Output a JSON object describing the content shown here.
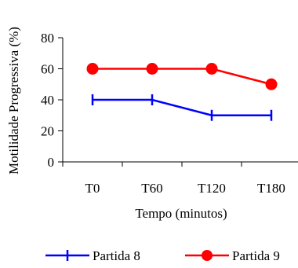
{
  "chart_data": {
    "type": "line",
    "categories": [
      "T0",
      "T60",
      "T120",
      "T180"
    ],
    "series": [
      {
        "name": "Partida 8",
        "values": [
          40,
          40,
          30,
          30
        ],
        "color": "#0000ff",
        "marker": "tick"
      },
      {
        "name": "Partida 9",
        "values": [
          60,
          60,
          60,
          50
        ],
        "color": "#ff0000",
        "marker": "circle"
      }
    ],
    "title": "",
    "xlabel": "Tempo (minutos)",
    "ylabel": "Motilidade Progressiva (%)",
    "ylim": [
      0,
      80
    ],
    "yticks": [
      0,
      20,
      40,
      60,
      80
    ],
    "grid": false,
    "legend": "bottom"
  }
}
